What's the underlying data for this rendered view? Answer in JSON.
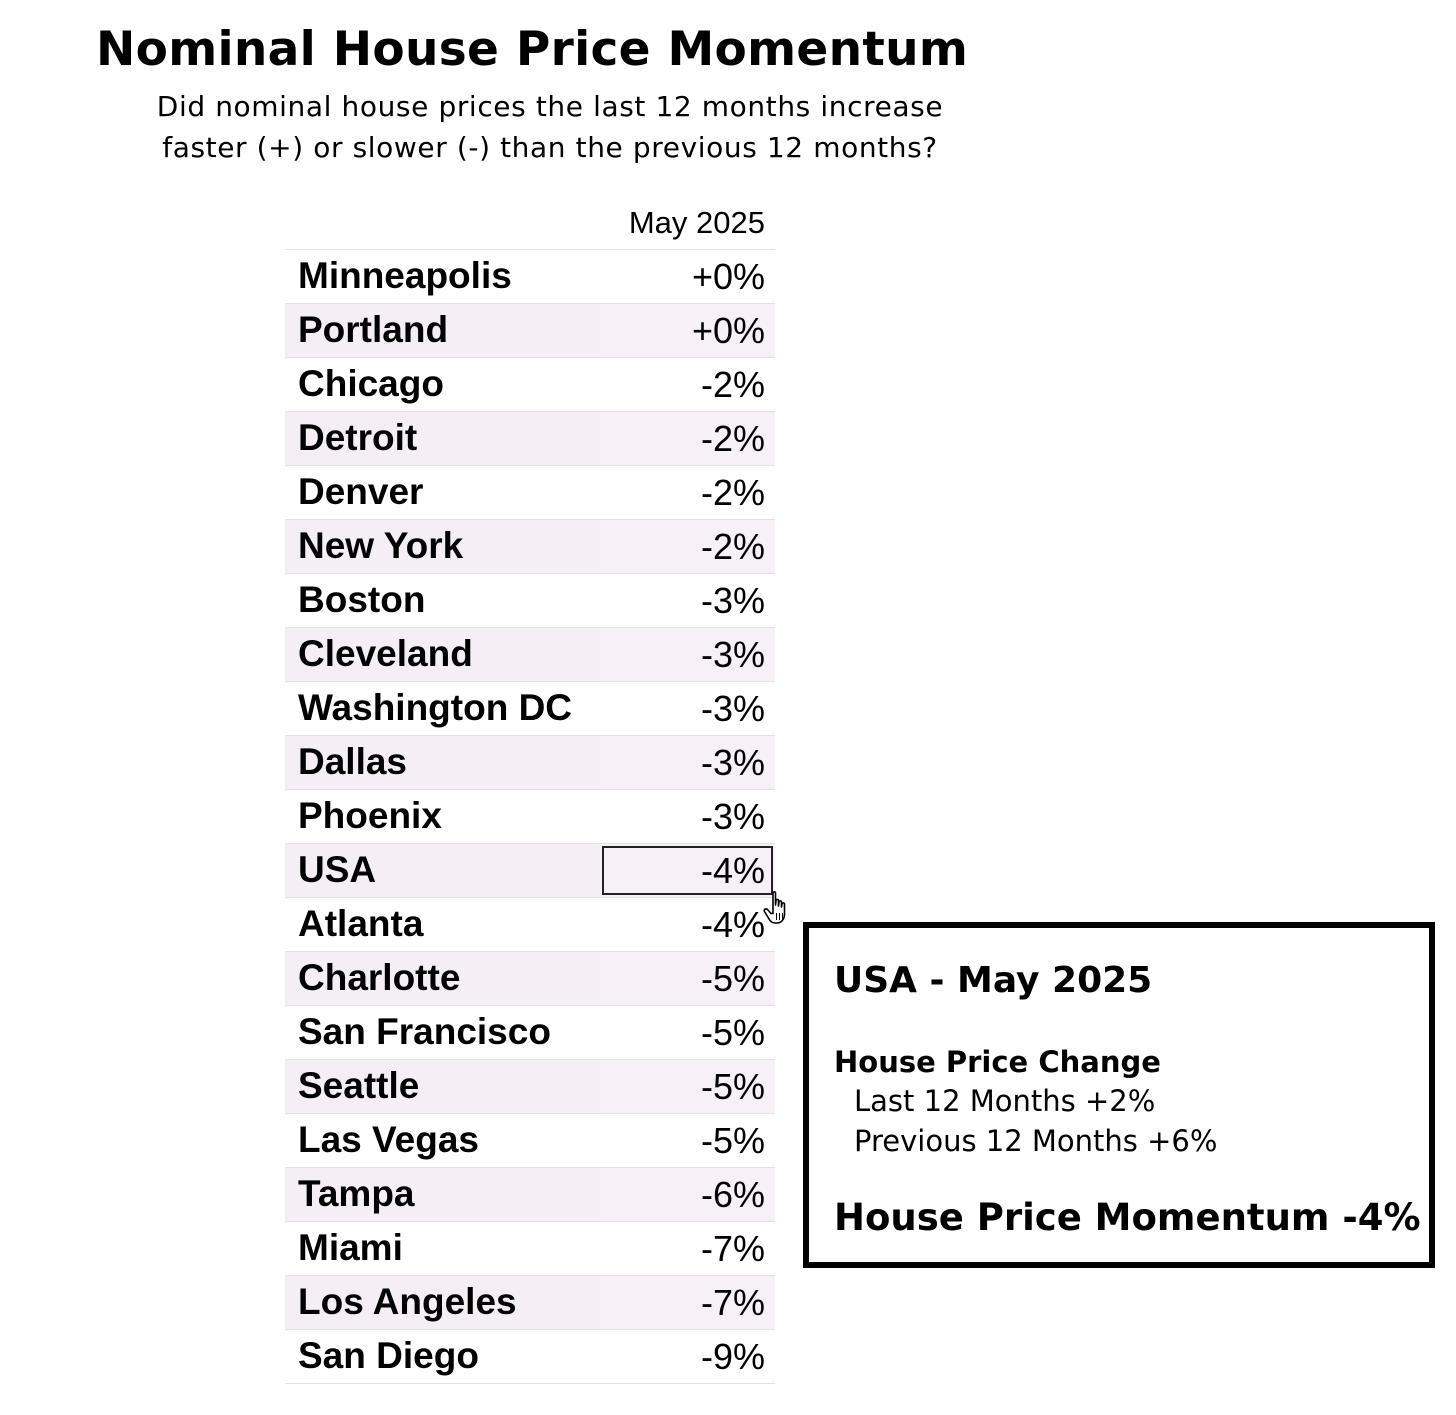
{
  "title": "Nominal House Price Momentum",
  "subtitle": {
    "line1": "Did nominal house prices the last 12 months increase",
    "line2": "faster (+) or slower (-) than the previous 12 months?"
  },
  "chart_data": {
    "type": "table",
    "title": "Nominal House Price Momentum",
    "subtitle": "Did nominal house prices the last 12 months increase faster (+) or slower (-) than the previous 12 months?",
    "column_header": "May 2025",
    "rows": [
      {
        "name": "Minneapolis",
        "display": "+0%",
        "value": 0
      },
      {
        "name": "Portland",
        "display": "+0%",
        "value": 0
      },
      {
        "name": "Chicago",
        "display": "-2%",
        "value": -2
      },
      {
        "name": "Detroit",
        "display": "-2%",
        "value": -2
      },
      {
        "name": "Denver",
        "display": "-2%",
        "value": -2
      },
      {
        "name": "New York",
        "display": "-2%",
        "value": -2
      },
      {
        "name": "Boston",
        "display": "-3%",
        "value": -3
      },
      {
        "name": "Cleveland",
        "display": "-3%",
        "value": -3
      },
      {
        "name": "Washington DC",
        "display": "-3%",
        "value": -3
      },
      {
        "name": "Dallas",
        "display": "-3%",
        "value": -3
      },
      {
        "name": "Phoenix",
        "display": "-3%",
        "value": -3
      },
      {
        "name": "USA",
        "display": "-4%",
        "value": -4
      },
      {
        "name": "Atlanta",
        "display": "-4%",
        "value": -4
      },
      {
        "name": "Charlotte",
        "display": "-5%",
        "value": -5
      },
      {
        "name": "San Francisco",
        "display": "-5%",
        "value": -5
      },
      {
        "name": "Seattle",
        "display": "-5%",
        "value": -5
      },
      {
        "name": "Las Vegas",
        "display": "-5%",
        "value": -5
      },
      {
        "name": "Tampa",
        "display": "-6%",
        "value": -6
      },
      {
        "name": "Miami",
        "display": "-7%",
        "value": -7
      },
      {
        "name": "Los Angeles",
        "display": "-7%",
        "value": -7
      },
      {
        "name": "San Diego",
        "display": "-9%",
        "value": -9
      }
    ],
    "selected_row": "USA"
  },
  "colors": {
    "alt_row_bg": "#f5eff5",
    "row_divider": "#e3e3e3",
    "text": "#000000"
  },
  "tooltip": {
    "title": "USA - May 2025",
    "heading": "House Price Change",
    "last12": "Last 12 Months +2%",
    "prev12": "Previous 12 Months +6%",
    "momentum": "House Price Momentum -4%"
  },
  "cursor_icon": "hand-pointer-icon"
}
